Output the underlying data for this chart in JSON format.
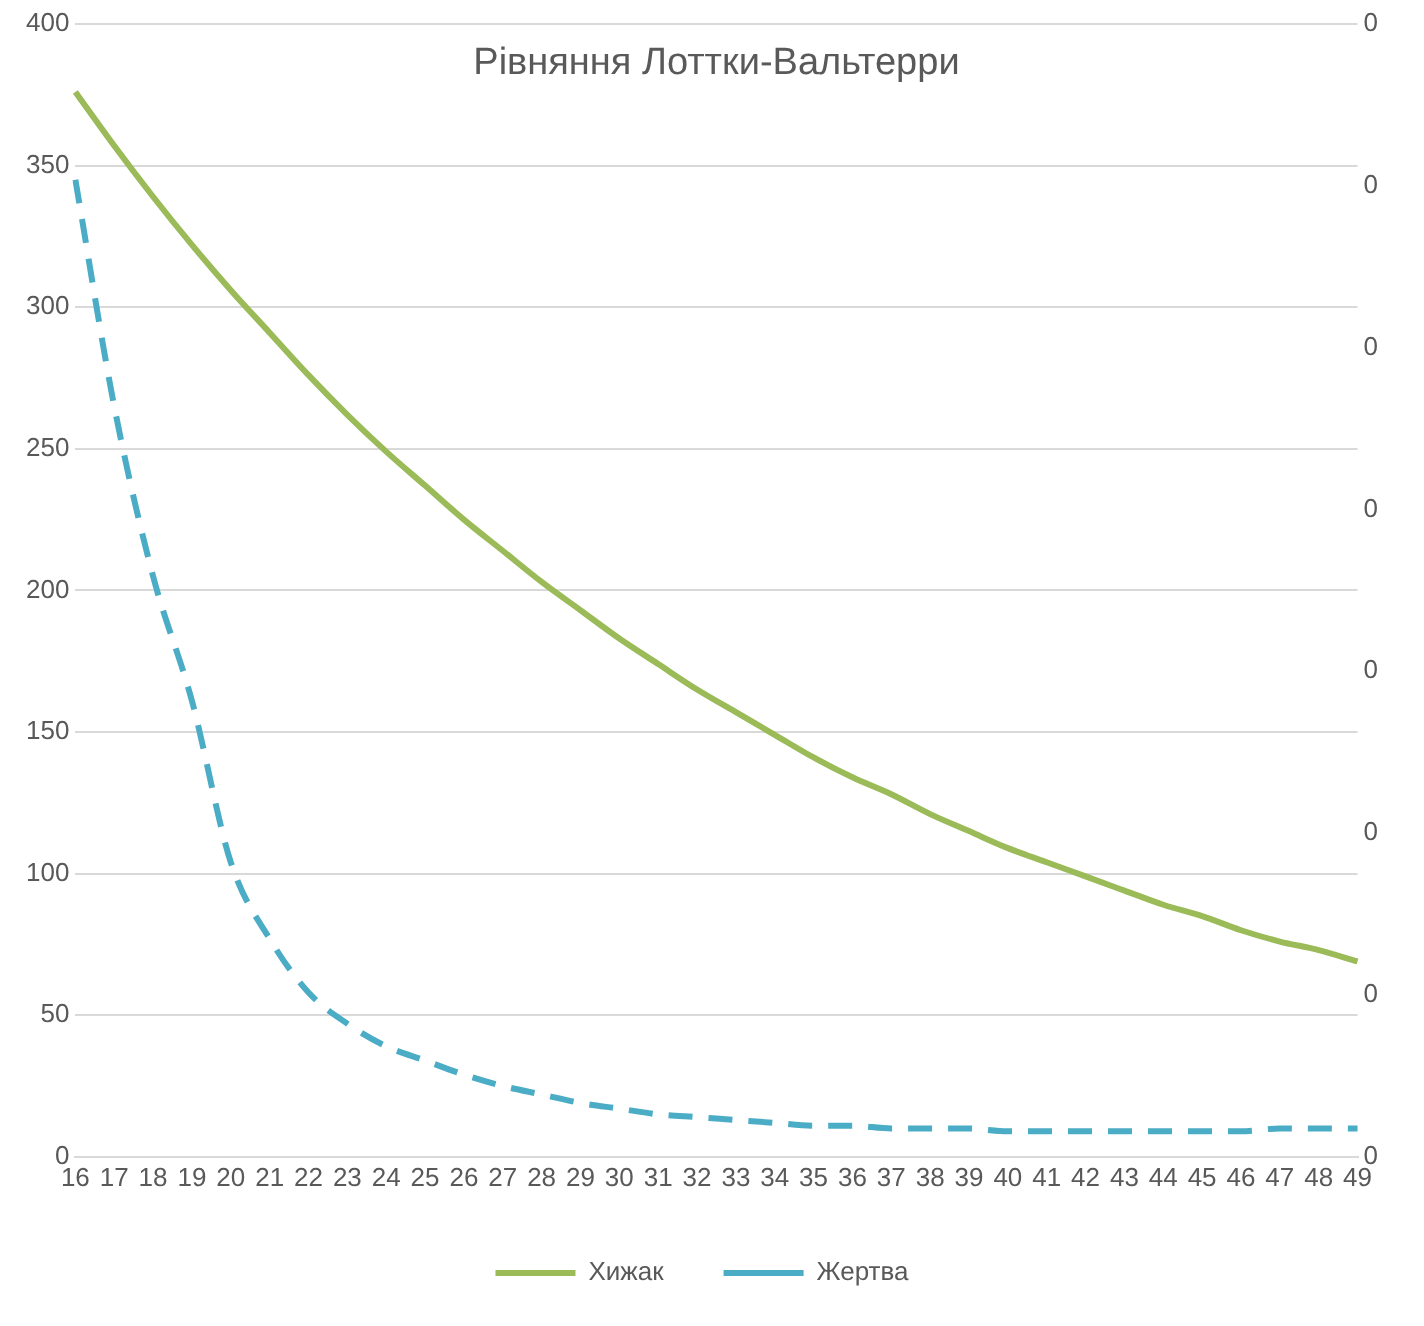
{
  "chart_data": {
    "type": "line",
    "title": "Рівняння Лоттки-Вальтерри",
    "categories": [
      "16",
      "17",
      "18",
      "19",
      "20",
      "21",
      "22",
      "23",
      "24",
      "25",
      "26",
      "27",
      "28",
      "29",
      "30",
      "31",
      "32",
      "33",
      "34",
      "35",
      "36",
      "37",
      "38",
      "39",
      "40",
      "41",
      "42",
      "43",
      "44",
      "45",
      "46",
      "47",
      "48",
      "49"
    ],
    "series": [
      {
        "name": "Хижак",
        "color": "#9bbb59",
        "line_style": "solid",
        "values": [
          376,
          357,
          339,
          322,
          306,
          291,
          276,
          262,
          249,
          237,
          225,
          214,
          203,
          193,
          183,
          174,
          165,
          157,
          149,
          141,
          134,
          128,
          121,
          115,
          109,
          104,
          99,
          94,
          89,
          85,
          80,
          76,
          73,
          69
        ]
      },
      {
        "name": "Жертва",
        "color": "#4bacc6",
        "line_style": "dashed",
        "values": [
          345,
          265,
          205,
          161,
          104,
          77,
          58,
          47,
          39,
          34,
          29,
          25,
          22,
          19,
          17,
          15,
          14,
          13,
          12,
          11,
          11,
          10,
          10,
          10,
          9,
          9,
          9,
          9,
          9,
          9,
          9,
          10,
          10,
          10
        ]
      }
    ],
    "ylim": [
      0,
      400
    ],
    "yticks": [
      0,
      50,
      100,
      150,
      200,
      250,
      300,
      350,
      400
    ],
    "y2lim": [
      0,
      0.35
    ],
    "y2ticks": [
      {
        "value": 0,
        "label": "0"
      },
      {
        "value": 0.05,
        "label": "0"
      },
      {
        "value": 0.1,
        "label": "0"
      },
      {
        "value": 0.15,
        "label": "0"
      },
      {
        "value": 0.2,
        "label": "0"
      },
      {
        "value": 0.25,
        "label": "0"
      },
      {
        "value": 0.3,
        "label": "0"
      },
      {
        "value": 0.35,
        "label": "0"
      }
    ],
    "grid": "y",
    "legend": "bottom",
    "marker": "none"
  }
}
